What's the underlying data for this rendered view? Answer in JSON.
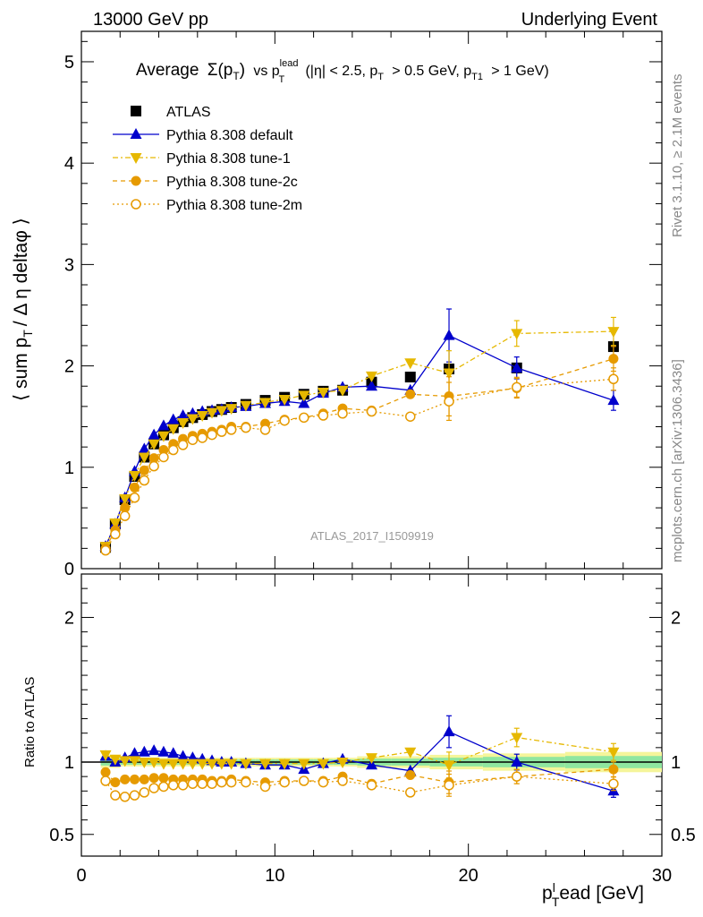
{
  "header": {
    "left": "13000 GeV pp",
    "right": "Underlying Event"
  },
  "side_labels": {
    "rivet": "Rivet 3.1.10, ≥ 2.1M events",
    "mcplots": "mcplots.cern.ch [arXiv:1306.3436]"
  },
  "watermark": "ATLAS_2017_I1509919",
  "title": {
    "avg": "Average",
    "sigma": "Σ(p",
    "sigma_sub": "T",
    "sigma_close": ")",
    "vs": "vs p",
    "vs_sup": "lead",
    "vs_sub": "T",
    "cuts_a": "(|η| < 2.5, p",
    "cuts_a_sub": "T",
    "cuts_b": "> 0.5 GeV, p",
    "cuts_b_sub": "T1",
    "cuts_c": "> 1 GeV)"
  },
  "axes": {
    "ylabel_main_a": "⟨ sum p",
    "ylabel_main_sub": "T",
    "ylabel_main_b": "/ Δ η deltaφ ⟩",
    "ylabel_ratio": "Ratio to ATLAS",
    "xlabel_a": "p",
    "xlabel_sup": "l",
    "xlabel_sub": "T",
    "xlabel_b": "ead [GeV]"
  },
  "colors": {
    "atlas": "#000000",
    "default": "#0000cc",
    "tune1": "#e6b800",
    "tune2c": "#e69a00",
    "tune2m": "#e69a00",
    "band_yellow": "#f5f59a",
    "band_green": "#8fe6a0"
  },
  "chart_data": [
    {
      "type": "line",
      "panel": "main",
      "xlim": [
        0,
        30
      ],
      "ylim": [
        0,
        5.3
      ],
      "y_ticks": [
        0,
        1,
        2,
        3,
        4,
        5
      ],
      "x": [
        1.25,
        1.75,
        2.25,
        2.75,
        3.25,
        3.75,
        4.25,
        4.75,
        5.25,
        5.75,
        6.25,
        6.75,
        7.25,
        7.75,
        8.5,
        9.5,
        10.5,
        11.5,
        12.5,
        13.5,
        15.0,
        17.0,
        19.0,
        22.5,
        27.5
      ],
      "series": [
        {
          "name": "ATLAS",
          "values": [
            0.21,
            0.44,
            0.68,
            0.91,
            1.1,
            1.23,
            1.32,
            1.39,
            1.45,
            1.49,
            1.52,
            1.55,
            1.57,
            1.59,
            1.62,
            1.66,
            1.69,
            1.72,
            1.75,
            1.76,
            1.84,
            1.89,
            1.97,
            1.98,
            2.19
          ]
        },
        {
          "name": "Pythia 8.308 default",
          "values": [
            0.22,
            0.44,
            0.7,
            0.96,
            1.18,
            1.32,
            1.41,
            1.47,
            1.51,
            1.53,
            1.55,
            1.56,
            1.57,
            1.59,
            1.6,
            1.63,
            1.65,
            1.63,
            1.73,
            1.79,
            1.8,
            1.76,
            2.3,
            1.98,
            1.66
          ]
        },
        {
          "name": "Pythia 8.308 tune-1",
          "values": [
            0.22,
            0.45,
            0.69,
            0.92,
            1.1,
            1.23,
            1.31,
            1.38,
            1.44,
            1.48,
            1.51,
            1.54,
            1.56,
            1.58,
            1.61,
            1.64,
            1.67,
            1.71,
            1.74,
            1.76,
            1.9,
            2.03,
            1.93,
            2.32,
            2.34
          ]
        },
        {
          "name": "Pythia 8.308 tune-2c",
          "values": [
            0.2,
            0.38,
            0.6,
            0.8,
            0.97,
            1.09,
            1.17,
            1.23,
            1.28,
            1.31,
            1.33,
            1.35,
            1.37,
            1.4,
            1.4,
            1.43,
            1.47,
            1.49,
            1.53,
            1.58,
            1.56,
            1.72,
            1.7,
            1.78,
            2.07
          ]
        },
        {
          "name": "Pythia 8.308 tune-2m",
          "values": [
            0.18,
            0.34,
            0.52,
            0.7,
            0.87,
            1.01,
            1.1,
            1.17,
            1.22,
            1.27,
            1.29,
            1.32,
            1.35,
            1.37,
            1.39,
            1.37,
            1.46,
            1.49,
            1.51,
            1.53,
            1.55,
            1.5,
            1.65,
            1.79,
            1.87
          ]
        }
      ]
    },
    {
      "type": "line",
      "panel": "ratio",
      "xlim": [
        0,
        30
      ],
      "x_ticks": [
        0,
        10,
        20,
        30
      ],
      "ylim": [
        0.35,
        2.3
      ],
      "y_ticks": [
        0.5,
        1,
        2
      ],
      "x": [
        1.25,
        1.75,
        2.25,
        2.75,
        3.25,
        3.75,
        4.25,
        4.75,
        5.25,
        5.75,
        6.25,
        6.75,
        7.25,
        7.75,
        8.5,
        9.5,
        10.5,
        11.5,
        12.5,
        13.5,
        15.0,
        17.0,
        19.0,
        22.5,
        27.5
      ],
      "series": [
        {
          "name": "Pythia 8.308 default",
          "values": [
            1.04,
            1.0,
            1.03,
            1.06,
            1.07,
            1.08,
            1.07,
            1.06,
            1.04,
            1.03,
            1.02,
            1.01,
            1.0,
            1.0,
            0.99,
            0.98,
            0.98,
            0.95,
            0.99,
            1.02,
            0.98,
            0.94,
            1.21,
            1.0,
            0.8
          ]
        },
        {
          "name": "Pythia 8.308 tune-1",
          "values": [
            1.05,
            1.02,
            1.01,
            1.01,
            1.0,
            1.0,
            0.99,
            0.99,
            0.99,
            0.99,
            0.99,
            0.99,
            0.99,
            0.99,
            0.99,
            0.99,
            0.99,
            0.99,
            0.99,
            1.0,
            1.03,
            1.07,
            0.98,
            1.17,
            1.07
          ]
        },
        {
          "name": "Pythia 8.308 tune-2c",
          "values": [
            0.93,
            0.86,
            0.88,
            0.88,
            0.88,
            0.89,
            0.89,
            0.88,
            0.88,
            0.88,
            0.88,
            0.87,
            0.87,
            0.88,
            0.87,
            0.86,
            0.87,
            0.87,
            0.87,
            0.9,
            0.85,
            0.91,
            0.86,
            0.9,
            0.95
          ]
        },
        {
          "name": "Pythia 8.308 tune-2m",
          "values": [
            0.87,
            0.77,
            0.76,
            0.77,
            0.79,
            0.82,
            0.83,
            0.84,
            0.84,
            0.85,
            0.85,
            0.85,
            0.86,
            0.86,
            0.86,
            0.83,
            0.86,
            0.87,
            0.86,
            0.87,
            0.84,
            0.79,
            0.84,
            0.9,
            0.85
          ]
        }
      ]
    }
  ]
}
